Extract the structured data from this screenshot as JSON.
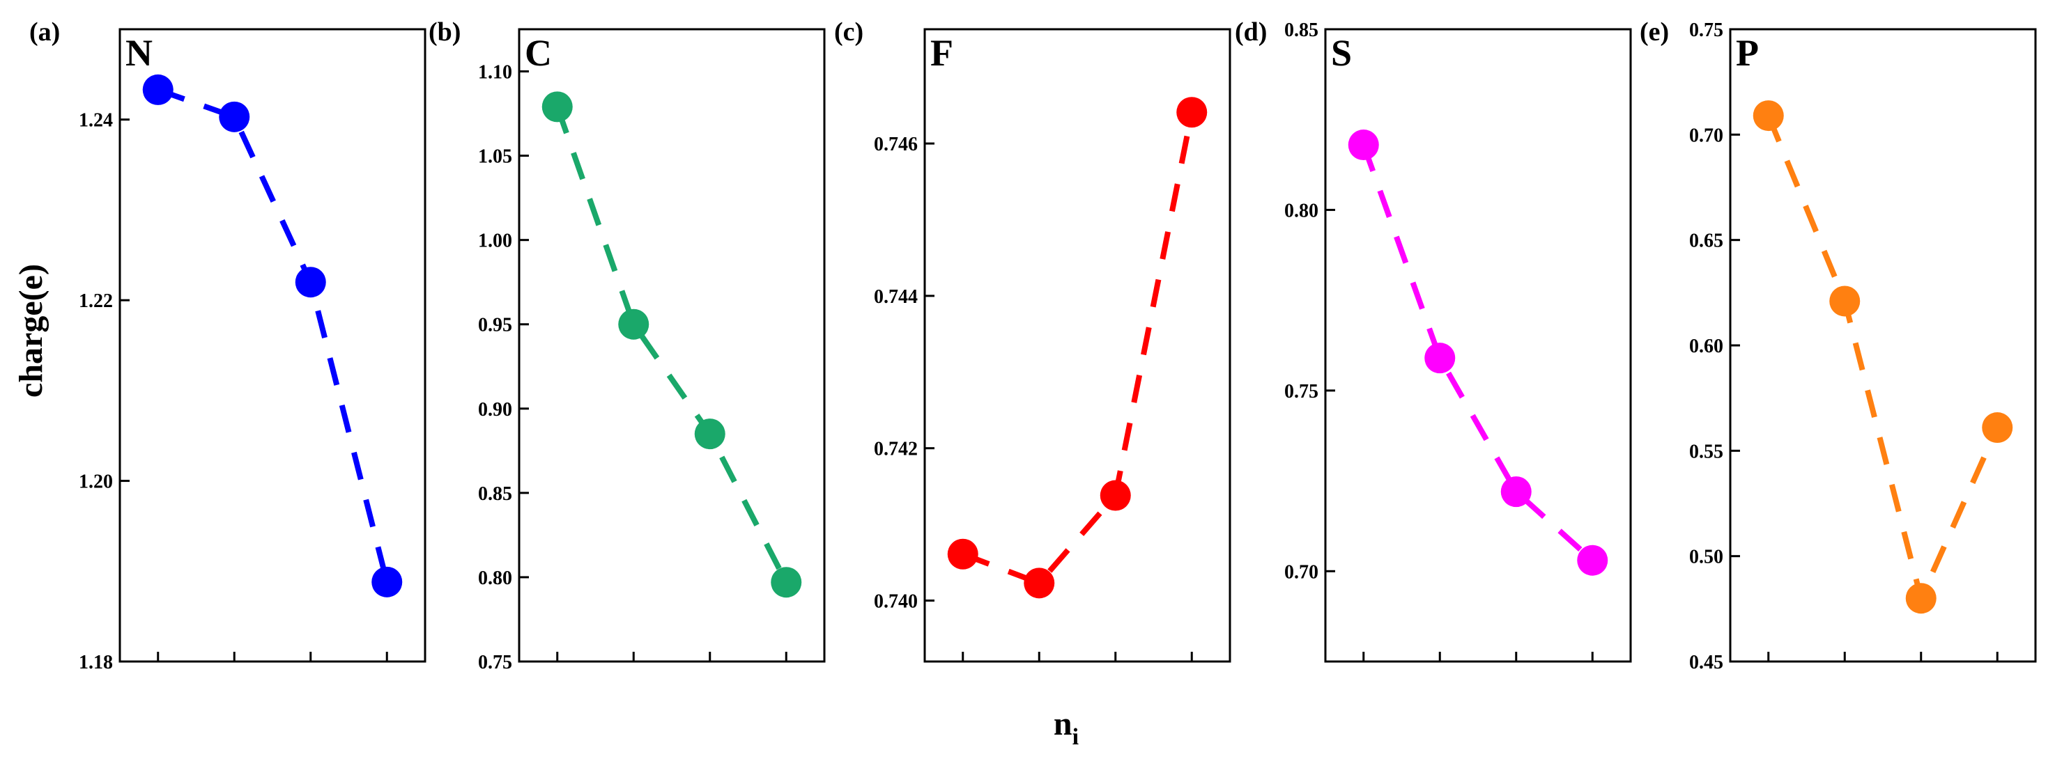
{
  "ylabel": "charge(e)",
  "xlabel": {
    "main": "n",
    "sub": "i"
  },
  "chart_data": [
    {
      "type": "line",
      "panel": "(a)",
      "element": "N",
      "color": "#0000ff",
      "x": [
        1,
        2,
        3,
        4
      ],
      "values": [
        1.2433,
        1.2403,
        1.222,
        1.1888
      ],
      "ylim": [
        1.18,
        1.25
      ],
      "yticks": [
        1.18,
        1.2,
        1.22,
        1.24
      ],
      "ytick_labels": [
        "1.18",
        "1.20",
        "1.22",
        "1.24"
      ],
      "line_style": "dashed",
      "marker": "circle"
    },
    {
      "type": "line",
      "panel": "(b)",
      "element": "C",
      "color": "#1aa86a",
      "x": [
        1,
        2,
        3,
        4
      ],
      "values": [
        1.079,
        0.95,
        0.885,
        0.797
      ],
      "ylim": [
        0.75,
        1.125
      ],
      "yticks": [
        0.75,
        0.8,
        0.85,
        0.9,
        0.95,
        1.0,
        1.05,
        1.1
      ],
      "ytick_labels": [
        "0.75",
        "0.80",
        "0.85",
        "0.90",
        "0.95",
        "1.00",
        "1.05",
        "1.10"
      ],
      "line_style": "dashed",
      "marker": "circle"
    },
    {
      "type": "line",
      "panel": "(c)",
      "element": "F",
      "color": "#ff0000",
      "x": [
        1,
        2,
        3,
        4
      ],
      "values": [
        0.74061,
        0.74023,
        0.74138,
        0.74641
      ],
      "ylim": [
        0.7392,
        0.7475
      ],
      "yticks": [
        0.74,
        0.742,
        0.744,
        0.746
      ],
      "ytick_labels": [
        "0.740",
        "0.742",
        "0.744",
        "0.746"
      ],
      "line_style": "dashed",
      "marker": "circle"
    },
    {
      "type": "line",
      "panel": "(d)",
      "element": "S",
      "color": "#ff00ff",
      "x": [
        1,
        2,
        3,
        4
      ],
      "values": [
        0.818,
        0.759,
        0.722,
        0.703
      ],
      "ylim": [
        0.675,
        0.85
      ],
      "yticks": [
        0.7,
        0.75,
        0.8,
        0.85
      ],
      "ytick_labels": [
        "0.70",
        "0.75",
        "0.80",
        "0.85"
      ],
      "line_style": "dashed",
      "marker": "circle"
    },
    {
      "type": "line",
      "panel": "(e)",
      "element": "P",
      "color": "#ff8011",
      "x": [
        1,
        2,
        3,
        4
      ],
      "values": [
        0.709,
        0.621,
        0.48,
        0.561
      ],
      "ylim": [
        0.45,
        0.75
      ],
      "yticks": [
        0.45,
        0.5,
        0.55,
        0.6,
        0.65,
        0.7,
        0.75
      ],
      "ytick_labels": [
        "0.45",
        "0.50",
        "0.55",
        "0.60",
        "0.65",
        "0.70",
        "0.75"
      ],
      "line_style": "dashed",
      "marker": "circle"
    }
  ]
}
